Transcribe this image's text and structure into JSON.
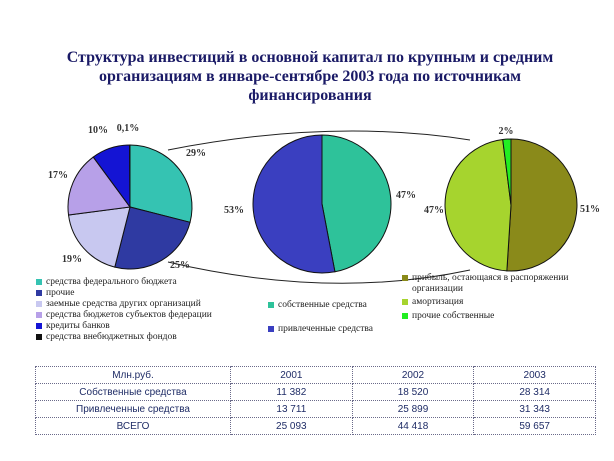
{
  "title": "Структура инвестиций в основной капитал по крупным и средним организациям в январе-сентябре 2003 года по источникам финансирования",
  "chart_data": [
    {
      "type": "pie",
      "labels": [
        "средства федерального бюджета",
        "прочие",
        "заемные средства других организаций",
        "средства бюджетов субъектов федерации",
        "кредиты банков",
        "средства внебюджетных фондов"
      ],
      "values": [
        29,
        25,
        19,
        17,
        10,
        0.1
      ],
      "value_labels": [
        "29%",
        "25%",
        "19%",
        "17%",
        "10%",
        "0,1%"
      ],
      "colors": [
        "#35c3b2",
        "#2f3aa2",
        "#c8c8f0",
        "#b7a0e8",
        "#1414d4",
        "#111111"
      ]
    },
    {
      "type": "pie",
      "labels": [
        "собственные средства",
        "привлеченные средства"
      ],
      "values": [
        47,
        53
      ],
      "value_labels": [
        "47%",
        "53%"
      ],
      "colors": [
        "#2ec29a",
        "#3a3fc0"
      ]
    },
    {
      "type": "pie",
      "labels": [
        "прибыль, остающаяся в распоряжении организации",
        "амортизация",
        "прочие собственные"
      ],
      "values": [
        51,
        47,
        2
      ],
      "value_labels": [
        "51%",
        "47%",
        "2%"
      ],
      "colors": [
        "#8a8a1a",
        "#a6d42e",
        "#22ee22"
      ]
    },
    {
      "type": "table",
      "columns": [
        "Млн.руб.",
        "2001",
        "2002",
        "2003"
      ],
      "rows": [
        [
          "Собственные средства",
          "11 382",
          "18 520",
          "28 314"
        ],
        [
          "Привлеченные средства",
          "13 711",
          "25 899",
          "31 343"
        ],
        [
          "ВСЕГО",
          "25 093",
          "44 418",
          "59 657"
        ]
      ]
    }
  ],
  "legends": {
    "left": [
      {
        "label": "средства федерального бюджета",
        "color": "#35c3b2"
      },
      {
        "label": "прочие",
        "color": "#2f3aa2"
      },
      {
        "label": "заемные средства других организаций",
        "color": "#c8c8f0"
      },
      {
        "label": "средства бюджетов субъектов федерации",
        "color": "#b7a0e8"
      },
      {
        "label": "кредиты банков",
        "color": "#1414d4"
      },
      {
        "label": "средства внебюджетных фондов",
        "color": "#111111"
      }
    ],
    "mid": [
      {
        "label": "собственные средства",
        "color": "#2ec29a"
      },
      {
        "label": "привлеченные средства",
        "color": "#3a3fc0"
      }
    ],
    "right": [
      {
        "label": "прибыль, остающаяся в распоряжении организации",
        "color": "#8a8a1a"
      },
      {
        "label": "амортизация",
        "color": "#a6d42e"
      },
      {
        "label": "прочие собственные",
        "color": "#22ee22"
      }
    ]
  }
}
